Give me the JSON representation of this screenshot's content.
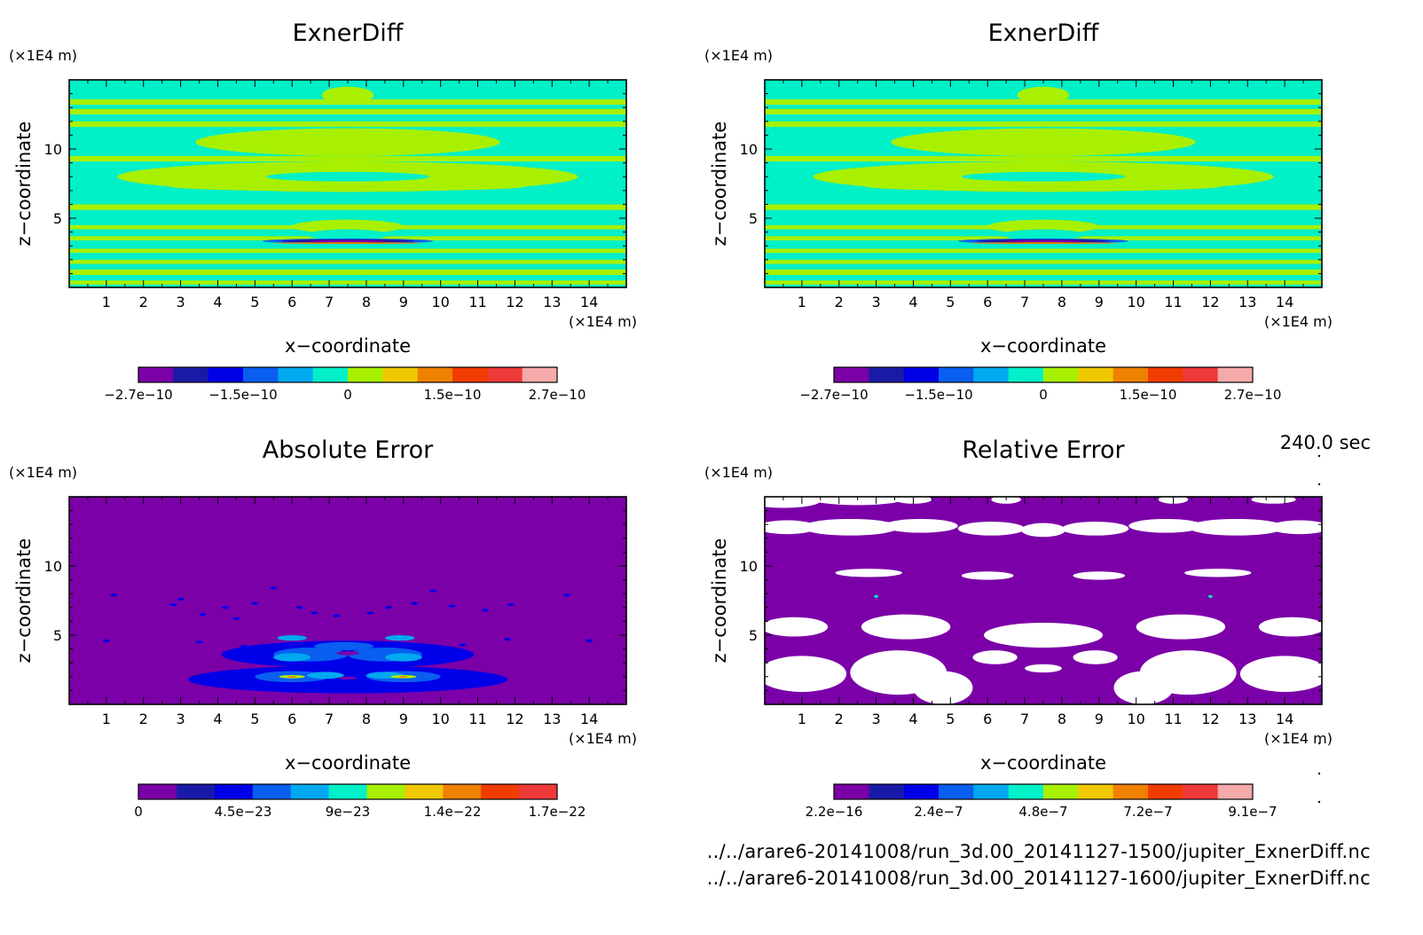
{
  "colors": [
    "#7b00a8",
    "#1a1aa8",
    "#0000e8",
    "#0a5ef0",
    "#00a8f0",
    "#00f0c8",
    "#a8f000",
    "#f0c800",
    "#f08000",
    "#f03c00",
    "#f03a3a",
    "#f5aaaa"
  ],
  "timestamp": "240.0 sec",
  "files": [
    "../../arare6-20141008/run_3d.00_20141127-1500/jupiter_ExnerDiff.nc",
    "../../arare6-20141008/run_3d.00_20141127-1600/jupiter_ExnerDiff.nc"
  ],
  "chart_data": [
    {
      "type": "heatmap",
      "title": "ExnerDiff",
      "xlabel": "x−coordinate",
      "ylabel": "z−coordinate",
      "x_unit": "(×1E4 m)",
      "y_unit": "(×1E4 m)",
      "xlim": [
        0,
        15
      ],
      "ylim": [
        0,
        15
      ],
      "xticks": [
        "1",
        "2",
        "3",
        "4",
        "5",
        "6",
        "7",
        "8",
        "9",
        "10",
        "11",
        "12",
        "13",
        "14"
      ],
      "yticks": [
        "5",
        "10"
      ],
      "colorbar": {
        "labels": [
          "−2.7e−10",
          "−1.5e−10",
          "0",
          "1.5e−10",
          "2.7e−10"
        ],
        "ncolors": 12
      },
      "field": "exner"
    },
    {
      "type": "heatmap",
      "title": "ExnerDiff",
      "xlabel": "x−coordinate",
      "ylabel": "z−coordinate",
      "x_unit": "(×1E4 m)",
      "y_unit": "(×1E4 m)",
      "xlim": [
        0,
        15
      ],
      "ylim": [
        0,
        15
      ],
      "xticks": [
        "1",
        "2",
        "3",
        "4",
        "5",
        "6",
        "7",
        "8",
        "9",
        "10",
        "11",
        "12",
        "13",
        "14"
      ],
      "yticks": [
        "5",
        "10"
      ],
      "colorbar": {
        "labels": [
          "−2.7e−10",
          "−1.5e−10",
          "0",
          "1.5e−10",
          "2.7e−10"
        ],
        "ncolors": 12
      },
      "field": "exner"
    },
    {
      "type": "heatmap",
      "title": "Absolute Error",
      "xlabel": "x−coordinate",
      "ylabel": "z−coordinate",
      "x_unit": "(×1E4 m)",
      "y_unit": "(×1E4 m)",
      "xlim": [
        0,
        15
      ],
      "ylim": [
        0,
        15
      ],
      "xticks": [
        "1",
        "2",
        "3",
        "4",
        "5",
        "6",
        "7",
        "8",
        "9",
        "10",
        "11",
        "12",
        "13",
        "14"
      ],
      "yticks": [
        "5",
        "10"
      ],
      "colorbar": {
        "labels": [
          "0",
          "4.5e−23",
          "9e−23",
          "1.4e−22",
          "1.7e−22"
        ],
        "ncolors": 11
      },
      "field": "abs"
    },
    {
      "type": "heatmap",
      "title": "Relative Error",
      "xlabel": "x−coordinate",
      "ylabel": "z−coordinate",
      "x_unit": "(×1E4 m)",
      "y_unit": "(×1E4 m)",
      "xlim": [
        0,
        15
      ],
      "ylim": [
        0,
        15
      ],
      "xticks": [
        "1",
        "2",
        "3",
        "4",
        "5",
        "6",
        "7",
        "8",
        "9",
        "10",
        "11",
        "12",
        "13",
        "14"
      ],
      "yticks": [
        "5",
        "10"
      ],
      "colorbar": {
        "labels": [
          "2.2e−16",
          "2.4e−7",
          "4.8e−7",
          "7.2e−7",
          "9.1e−7"
        ],
        "ncolors": 12
      },
      "field": "rel"
    }
  ]
}
